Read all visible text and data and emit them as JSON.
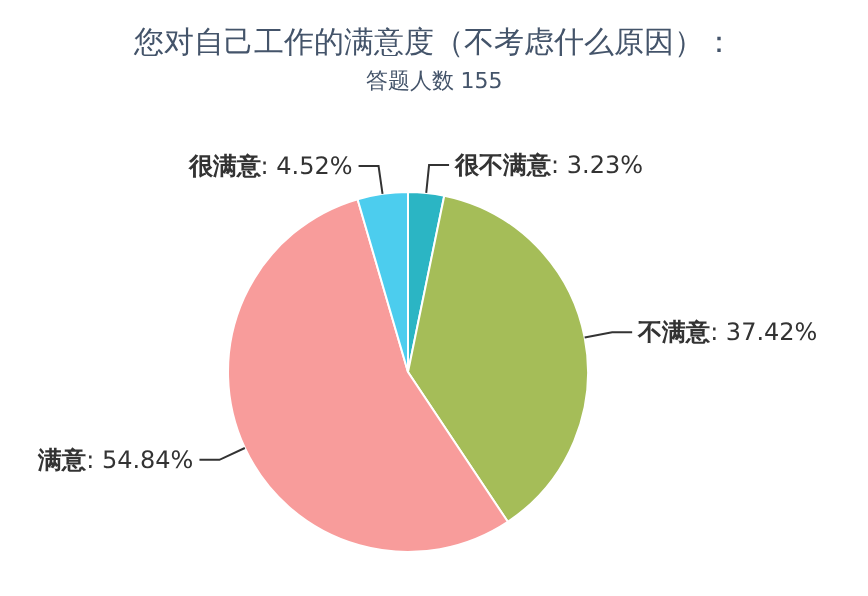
{
  "chart_data": {
    "type": "pie",
    "title": "您对自己工作的满意度（不考虑什么原因）：",
    "subtitle": "答题人数 155",
    "categories": [
      "很不满意",
      "不满意",
      "满意",
      "很满意"
    ],
    "values": [
      3.23,
      37.42,
      54.84,
      4.52
    ],
    "colors": [
      "#2bb5c4",
      "#a5bd58",
      "#f89c9b",
      "#4ccdee"
    ],
    "value_labels": [
      ": 3.23%",
      ": 37.42%",
      ": 54.84%",
      ": 4.52%"
    ]
  }
}
